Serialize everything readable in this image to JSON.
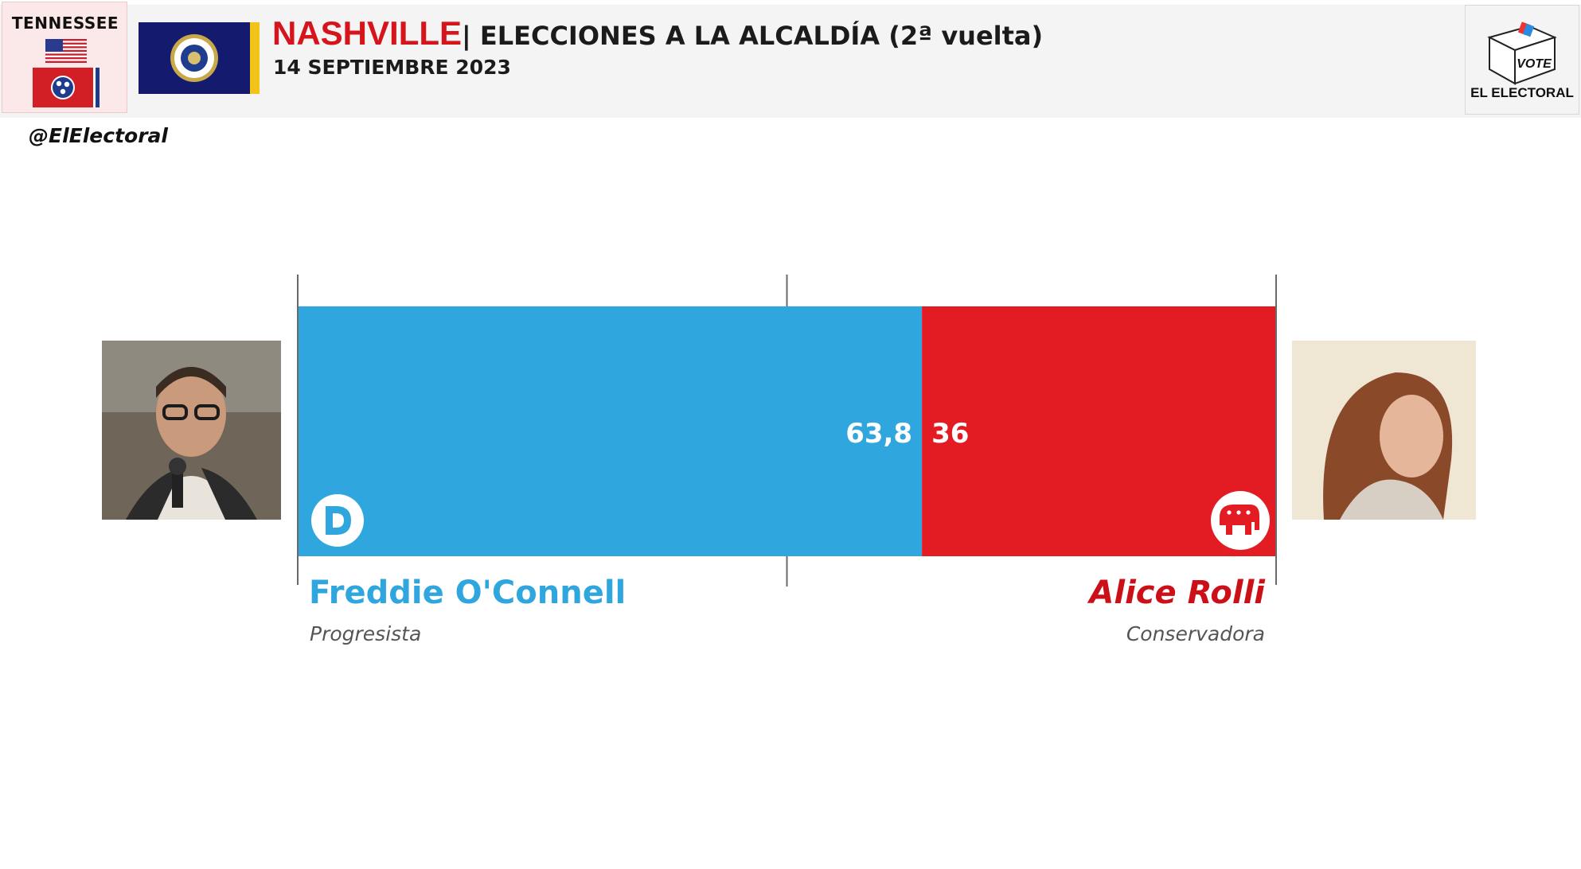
{
  "header": {
    "state": "TENNESSEE",
    "city": "NASHVILLE",
    "title_rest": "| ELECCIONES A LA ALCALDÍA (2ª vuelta)",
    "date": "14 SEPTIEMBRE 2023",
    "handle": "@ElElectoral",
    "logo_text": "EL ELECTORAL",
    "logo_box_text": "VOTE"
  },
  "chart_data": {
    "type": "bar",
    "orientation": "horizontal-stacked",
    "title": "NASHVILLE | ELECCIONES A LA ALCALDÍA (2ª vuelta)",
    "subtitle": "14 SEPTIEMBRE 2023",
    "xlim": [
      0,
      100
    ],
    "midline": 50,
    "series": [
      {
        "candidate": "Freddie O'Connell",
        "party": "Progresista",
        "party_icon": "democrat-d-icon",
        "value": 63.8,
        "label": "63,8",
        "color": "#2fa6dd"
      },
      {
        "candidate": "Alice Rolli",
        "party": "Conservadora",
        "party_icon": "republican-elephant-icon",
        "value": 36,
        "label": "36",
        "color": "#e31b23"
      }
    ]
  },
  "colors": {
    "accent_red": "#d6141c",
    "dem_blue": "#2fa6dd",
    "rep_red": "#e31b23"
  }
}
